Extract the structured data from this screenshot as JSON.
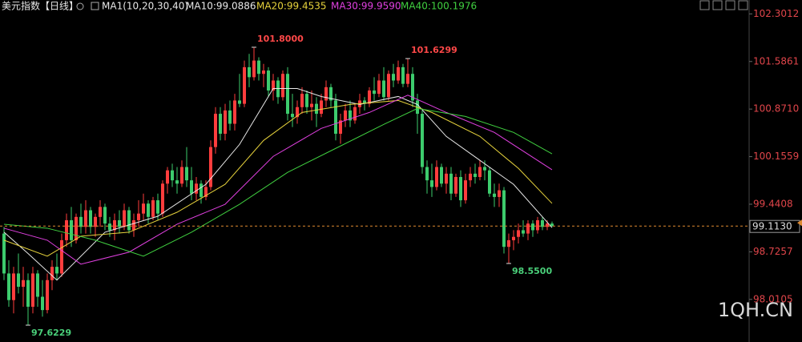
{
  "chart_data": {
    "type": "candlestick",
    "title": "美元指数",
    "period": "【日线】",
    "indicator": "MA1(10,20,30,40)",
    "colors": {
      "up": "#ff3d3d",
      "down": "#3dcc6d"
    },
    "ylim": [
      97.37,
      102.51
    ],
    "yticks": [
      102.3012,
      101.5861,
      {
        "value": 100.871,
        "label": "100.8710"
      },
      100.1559,
      99.4408,
      98.7257,
      98.0105
    ],
    "last_price": {
      "value": 99.113,
      "label": "99.1130"
    },
    "watermark": "1QH.CN",
    "annotations": [
      {
        "x": 52,
        "value": 101.8,
        "label": "101.8000"
      },
      {
        "x": 84,
        "value": 101.6299,
        "label": "101.6299"
      },
      {
        "x": 105,
        "value": 98.55,
        "label": "98.5500"
      },
      {
        "x": 5,
        "value": 97.6229,
        "label": "97.6229"
      }
    ],
    "ohlc": [
      [
        99.0,
        99.1,
        98.3,
        98.4
      ],
      [
        98.4,
        98.6,
        97.9,
        98.0
      ],
      [
        98.0,
        98.5,
        97.8,
        98.4
      ],
      [
        98.4,
        98.7,
        98.1,
        98.2
      ],
      [
        98.2,
        98.5,
        97.9,
        98.3
      ],
      [
        98.3,
        98.4,
        97.6229,
        97.9
      ],
      [
        97.9,
        98.5,
        97.8,
        98.4
      ],
      [
        98.4,
        98.45,
        97.9,
        98.05
      ],
      [
        98.05,
        98.3,
        97.75,
        97.85
      ],
      [
        97.85,
        98.4,
        97.8,
        98.3
      ],
      [
        98.3,
        98.6,
        98.15,
        98.5
      ],
      [
        98.5,
        98.7,
        98.3,
        98.4
      ],
      [
        98.4,
        99.0,
        98.35,
        98.9
      ],
      [
        98.9,
        99.3,
        98.8,
        99.2
      ],
      [
        99.2,
        99.4,
        98.8,
        98.9
      ],
      [
        98.9,
        99.3,
        98.85,
        99.25
      ],
      [
        99.25,
        99.45,
        99.0,
        99.1
      ],
      [
        99.1,
        99.5,
        99.0,
        99.35
      ],
      [
        99.35,
        99.4,
        99.0,
        99.1
      ],
      [
        99.1,
        99.3,
        98.95,
        99.25
      ],
      [
        99.25,
        99.5,
        99.1,
        99.4
      ],
      [
        99.4,
        99.45,
        99.05,
        99.15
      ],
      [
        99.15,
        99.25,
        98.95,
        99.05
      ],
      [
        99.05,
        99.3,
        98.9,
        99.2
      ],
      [
        99.2,
        99.35,
        99.0,
        99.1
      ],
      [
        99.1,
        99.45,
        99.05,
        99.35
      ],
      [
        99.35,
        99.4,
        99.0,
        99.05
      ],
      [
        99.05,
        99.3,
        98.95,
        99.2
      ],
      [
        99.2,
        99.5,
        99.1,
        99.3
      ],
      [
        99.3,
        99.6,
        99.2,
        99.45
      ],
      [
        99.45,
        99.5,
        99.15,
        99.25
      ],
      [
        99.25,
        99.55,
        99.2,
        99.5
      ],
      [
        99.5,
        99.6,
        99.2,
        99.3
      ],
      [
        99.3,
        99.8,
        99.25,
        99.75
      ],
      [
        99.75,
        100.0,
        99.6,
        99.95
      ],
      [
        99.95,
        100.05,
        99.7,
        99.8
      ],
      [
        99.8,
        100.0,
        99.6,
        99.75
      ],
      [
        99.75,
        100.1,
        99.7,
        100.0
      ],
      [
        100.0,
        100.3,
        99.7,
        99.8
      ],
      [
        99.8,
        100.0,
        99.5,
        99.6
      ],
      [
        99.6,
        99.85,
        99.5,
        99.75
      ],
      [
        99.75,
        99.8,
        99.45,
        99.55
      ],
      [
        99.55,
        99.8,
        99.5,
        99.7
      ],
      [
        99.7,
        100.4,
        99.65,
        100.3
      ],
      [
        100.3,
        100.9,
        100.2,
        100.8
      ],
      [
        100.8,
        100.9,
        100.4,
        100.5
      ],
      [
        100.5,
        100.95,
        100.4,
        100.85
      ],
      [
        100.85,
        101.0,
        100.55,
        100.65
      ],
      [
        100.65,
        101.1,
        100.55,
        101.0
      ],
      [
        101.0,
        101.4,
        100.9,
        100.95
      ],
      [
        100.95,
        101.6,
        100.9,
        101.5
      ],
      [
        101.5,
        101.7,
        101.2,
        101.35
      ],
      [
        101.35,
        101.8,
        101.3,
        101.6
      ],
      [
        101.6,
        101.65,
        101.3,
        101.4
      ],
      [
        101.4,
        101.55,
        101.2,
        101.45
      ],
      [
        101.45,
        101.5,
        101.05,
        101.15
      ],
      [
        101.15,
        101.4,
        101.0,
        101.3
      ],
      [
        101.3,
        101.35,
        100.95,
        101.05
      ],
      [
        101.05,
        101.45,
        101.0,
        101.4
      ],
      [
        101.4,
        101.5,
        100.7,
        100.8
      ],
      [
        100.8,
        101.1,
        100.6,
        100.75
      ],
      [
        100.75,
        101.0,
        100.65,
        100.9
      ],
      [
        100.9,
        101.2,
        100.8,
        101.1
      ],
      [
        101.1,
        101.15,
        100.8,
        100.9
      ],
      [
        100.9,
        101.15,
        100.7,
        100.95
      ],
      [
        100.95,
        101.05,
        100.6,
        100.8
      ],
      [
        100.8,
        101.1,
        100.75,
        101.0
      ],
      [
        101.0,
        101.3,
        100.9,
        101.2
      ],
      [
        101.2,
        101.25,
        100.9,
        101.0
      ],
      [
        101.0,
        101.1,
        100.4,
        100.5
      ],
      [
        100.5,
        100.8,
        100.35,
        100.7
      ],
      [
        100.7,
        100.95,
        100.6,
        100.85
      ],
      [
        100.85,
        101.0,
        100.6,
        100.7
      ],
      [
        100.7,
        100.95,
        100.65,
        100.9
      ],
      [
        100.9,
        101.1,
        100.8,
        101.0
      ],
      [
        101.0,
        101.05,
        100.85,
        100.95
      ],
      [
        100.95,
        101.2,
        100.9,
        101.15
      ],
      [
        101.15,
        101.35,
        101.0,
        101.1
      ],
      [
        101.1,
        101.4,
        101.05,
        101.3
      ],
      [
        101.3,
        101.5,
        101.0,
        101.05
      ],
      [
        101.05,
        101.45,
        101.0,
        101.4
      ],
      [
        101.4,
        101.55,
        101.2,
        101.3
      ],
      [
        101.3,
        101.6,
        101.25,
        101.5
      ],
      [
        101.5,
        101.55,
        101.2,
        101.25
      ],
      [
        101.25,
        101.6299,
        101.2,
        101.4
      ],
      [
        101.4,
        101.5,
        100.9,
        101.0
      ],
      [
        101.0,
        101.1,
        100.5,
        100.8
      ],
      [
        100.8,
        100.85,
        99.9,
        100.0
      ],
      [
        100.0,
        100.1,
        99.6,
        99.8
      ],
      [
        99.8,
        100.05,
        99.55,
        99.7
      ],
      [
        99.7,
        100.1,
        99.65,
        100.0
      ],
      [
        100.0,
        100.05,
        99.7,
        99.75
      ],
      [
        99.75,
        100.0,
        99.6,
        99.9
      ],
      [
        99.9,
        100.0,
        99.5,
        99.6
      ],
      [
        99.6,
        99.9,
        99.55,
        99.85
      ],
      [
        99.85,
        99.95,
        99.4,
        99.5
      ],
      [
        99.5,
        99.9,
        99.45,
        99.8
      ],
      [
        99.8,
        100.0,
        99.7,
        99.9
      ],
      [
        99.9,
        100.05,
        99.75,
        99.85
      ],
      [
        99.85,
        100.1,
        99.8,
        100.0
      ],
      [
        100.0,
        100.1,
        99.8,
        99.95
      ],
      [
        99.95,
        100.0,
        99.55,
        99.6
      ],
      [
        99.6,
        99.75,
        99.4,
        99.55
      ],
      [
        99.55,
        99.75,
        99.4,
        99.65
      ],
      [
        99.65,
        99.7,
        98.7,
        98.8
      ],
      [
        98.8,
        99.0,
        98.55,
        98.9
      ],
      [
        98.9,
        99.05,
        98.75,
        98.95
      ],
      [
        98.95,
        99.15,
        98.85,
        99.05
      ],
      [
        99.05,
        99.2,
        98.95,
        99.0
      ],
      [
        99.0,
        99.2,
        98.9,
        99.15
      ],
      [
        99.15,
        99.2,
        98.95,
        99.05
      ],
      [
        99.05,
        99.25,
        99.0,
        99.2
      ],
      [
        99.2,
        99.25,
        99.05,
        99.1
      ],
      [
        99.1,
        99.2,
        99.05,
        99.15
      ],
      [
        99.15,
        99.18,
        99.1,
        99.113
      ]
    ],
    "ma_series": [
      {
        "label": "MA10:99.0886",
        "color": "#e8e8e8",
        "x": [
          0,
          5,
          11,
          21,
          32,
          42,
          49,
          56,
          61,
          66,
          74,
          82,
          86,
          92,
          99,
          106,
          114
        ],
        "values": [
          99.02,
          98.7,
          98.3,
          99.02,
          99.26,
          99.74,
          100.34,
          101.18,
          101.18,
          101.06,
          100.94,
          101.06,
          100.94,
          100.46,
          100.1,
          99.74,
          99.0886
        ]
      },
      {
        "label": "MA20:99.4535",
        "color": "#e6d23c",
        "x": [
          0,
          9,
          16,
          26,
          36,
          46,
          54,
          62,
          72,
          82,
          89,
          99,
          107,
          114
        ],
        "values": [
          98.9,
          98.66,
          98.96,
          99.02,
          99.32,
          99.74,
          100.4,
          100.82,
          100.94,
          101.0,
          100.82,
          100.46,
          99.98,
          99.4535
        ]
      },
      {
        "label": "MA30:99.9590",
        "color": "#e040e0",
        "x": [
          0,
          9,
          16,
          26,
          36,
          46,
          56,
          66,
          76,
          84,
          92,
          102,
          114
        ],
        "values": [
          99.08,
          98.9,
          98.54,
          98.72,
          99.14,
          99.44,
          100.16,
          100.58,
          100.82,
          101.08,
          100.82,
          100.52,
          99.959
        ]
      },
      {
        "label": "MA40:100.1976",
        "color": "#40d040",
        "x": [
          0,
          9,
          19,
          29,
          39,
          49,
          59,
          69,
          79,
          86,
          96,
          106,
          114
        ],
        "values": [
          99.14,
          99.08,
          98.9,
          98.66,
          99.02,
          99.44,
          99.92,
          100.28,
          100.64,
          100.88,
          100.76,
          100.52,
          100.1976
        ]
      }
    ]
  }
}
